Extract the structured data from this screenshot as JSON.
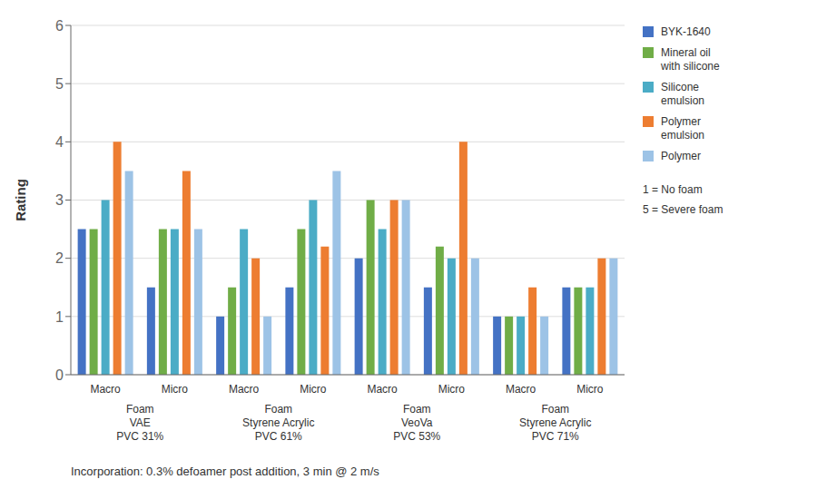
{
  "chart_data": {
    "type": "bar",
    "ylabel": "Rating",
    "categories": [
      "Macro",
      "Micro",
      "Macro",
      "Micro",
      "Macro",
      "Micro",
      "Macro",
      "Micro"
    ],
    "group_labels": [
      "Foam\nVAE\nPVC 31%",
      "Foam\nStyrene Acrylic\nPVC 61%",
      "Foam\nVeoVa\nPVC 53%",
      "Foam\nStyrene Acrylic\nPVC 71%"
    ],
    "series": [
      {
        "name": "BYK-1640",
        "color": "#4472C4",
        "values": [
          2.5,
          1.5,
          1.0,
          1.5,
          2.0,
          1.5,
          1.0,
          1.5
        ]
      },
      {
        "name": "Mineral oil\nwith silicone",
        "color": "#70AD47",
        "values": [
          2.5,
          2.5,
          1.5,
          2.5,
          3.0,
          2.2,
          1.0,
          1.5
        ]
      },
      {
        "name": "Silicone\nemulsion",
        "color": "#4BACC6",
        "values": [
          3.0,
          2.5,
          2.5,
          3.0,
          2.5,
          2.0,
          1.0,
          1.5
        ]
      },
      {
        "name": "Polymer\nemulsion",
        "color": "#ED7D31",
        "values": [
          4.0,
          3.5,
          2.0,
          2.2,
          3.0,
          4.0,
          1.5,
          2.0
        ]
      },
      {
        "name": "Polymer",
        "color": "#9DC3E6",
        "values": [
          3.5,
          2.5,
          1.0,
          3.5,
          3.0,
          2.0,
          1.0,
          2.0
        ]
      }
    ],
    "ylim": [
      0,
      6
    ],
    "yticks": [
      0,
      1,
      2,
      3,
      4,
      5,
      6
    ],
    "grid": true,
    "legend": "upper right",
    "annotations": [
      "1 = No foam",
      "5 = Severe foam",
      "Incorporation: 0.3% defoamer post addition, 3 min @ 2 m/s"
    ]
  }
}
